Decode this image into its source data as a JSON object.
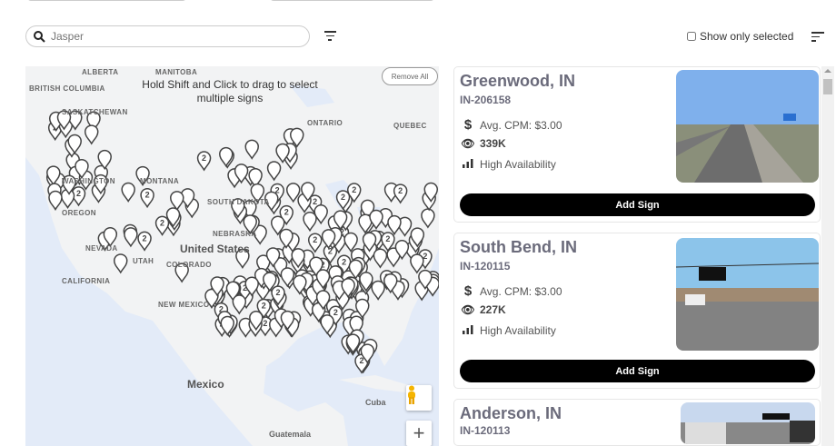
{
  "search": {
    "placeholder": "Jasper",
    "icon": "search-icon"
  },
  "filter_icon": "filter-icon",
  "show_only_selected": {
    "label": "Show only selected",
    "checked": false
  },
  "sort_icon": "sort-icon",
  "map": {
    "hint": "Hold Shift and Click to drag to select multiple signs",
    "remove_all": "Remove All",
    "labels": {
      "alberta": "ALBERTA",
      "manitoba": "MANITOBA",
      "british_columbia": "BRITISH COLUMBIA",
      "saskatchewan": "SASKATCHEWAN",
      "ontario": "ONTARIO",
      "quebec": "QUEBEC",
      "washington": "WASHINGTON",
      "montana": "MONTANA",
      "oregon": "OREGON",
      "south_dakota": "SOUTH DAKOTA",
      "nebraska": "NEBRASKA",
      "nevada": "NEVADA",
      "utah": "UTAH",
      "colorado": "COLORADO",
      "california": "CALIFORNIA",
      "new_mexico": "NEW MEXICO",
      "united_states": "United States",
      "mexico": "Mexico",
      "cuba": "Cuba",
      "guatemala": "Guatemala"
    },
    "zoom_in": "+",
    "cluster_label": "2",
    "land_color": "#f2f3f4",
    "water_color": "#e3ebf8"
  },
  "signs": [
    {
      "city": "Greenwood, IN",
      "id": "IN-206158",
      "cpm": "Avg. CPM: $3.00",
      "impressions": "339K",
      "availability": "High Availability",
      "button": "Add Sign"
    },
    {
      "city": "South Bend, IN",
      "id": "IN-120115",
      "cpm": "Avg. CPM: $3.00",
      "impressions": "227K",
      "availability": "High Availability",
      "button": "Add Sign"
    },
    {
      "city": "Anderson, IN",
      "id": "IN-120113"
    }
  ]
}
